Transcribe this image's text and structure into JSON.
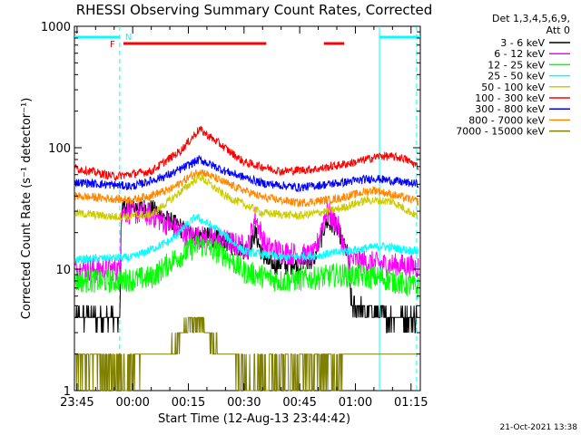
{
  "chart_data": {
    "type": "line",
    "title": "RHESSI Observing Summary Count Rates, Corrected",
    "xlabel": "Start Time (12-Aug-13 23:44:42)",
    "ylabel": "Corrected Count Rate (s⁻¹ detector⁻¹)",
    "yscale": "log",
    "ylim": [
      1,
      1000
    ],
    "xlim_minutes": [
      -0.7,
      92.5
    ],
    "x_tick_labels": [
      "23:45",
      "00:00",
      "00:15",
      "00:30",
      "00:45",
      "01:00",
      "01:15"
    ],
    "y_tick_labels": [
      "1",
      "10",
      "100",
      "1000"
    ],
    "legend_header": [
      "Det 1,3,4,5,6,9,",
      "Att 0"
    ],
    "legend_position": "right",
    "timestamp": "21-Oct-2021 13:38",
    "annotations": {
      "flags": [
        "F",
        "N"
      ],
      "night_intervals_min": [
        [
          -0.7,
          11.5
        ],
        [
          81.5,
          92.5
        ]
      ],
      "saa_dashed_min": [
        11.5,
        91.5
      ],
      "flare_bars_min": [
        [
          12.5,
          51
        ],
        [
          66.5,
          72
        ]
      ]
    },
    "series": [
      {
        "name": "3 - 6 keV",
        "color": "#000000",
        "points": [
          [
            -0.5,
            4
          ],
          [
            10,
            4
          ],
          [
            11.5,
            3.5
          ],
          [
            12,
            33
          ],
          [
            20,
            32
          ],
          [
            25,
            25
          ],
          [
            30,
            20
          ],
          [
            40,
            17
          ],
          [
            46,
            14
          ],
          [
            48,
            20
          ],
          [
            50,
            13
          ],
          [
            52,
            11
          ],
          [
            60,
            11
          ],
          [
            64,
            12
          ],
          [
            67,
            24
          ],
          [
            70,
            22
          ],
          [
            73,
            13
          ],
          [
            74,
            5
          ],
          [
            84,
            4
          ],
          [
            92,
            4
          ]
        ]
      },
      {
        "name": "6 - 12 keV",
        "color": "#ff00ff",
        "points": [
          [
            -0.5,
            10
          ],
          [
            11.5,
            10
          ],
          [
            12,
            30
          ],
          [
            20,
            28
          ],
          [
            25,
            23
          ],
          [
            30,
            19
          ],
          [
            40,
            17
          ],
          [
            46,
            15
          ],
          [
            48,
            27
          ],
          [
            51,
            15
          ],
          [
            60,
            13
          ],
          [
            64,
            13
          ],
          [
            67,
            30
          ],
          [
            70,
            24
          ],
          [
            73,
            12
          ],
          [
            82,
            11
          ],
          [
            92,
            10.5
          ]
        ]
      },
      {
        "name": "12 - 25 keV",
        "color": "#00ff00",
        "points": [
          [
            -0.5,
            8
          ],
          [
            10,
            8
          ],
          [
            20,
            8.5
          ],
          [
            26,
            12
          ],
          [
            33,
            16
          ],
          [
            40,
            13
          ],
          [
            45,
            9.5
          ],
          [
            55,
            8
          ],
          [
            65,
            8.5
          ],
          [
            70,
            9
          ],
          [
            82,
            8.5
          ],
          [
            92,
            7
          ]
        ]
      },
      {
        "name": "25 - 50 keV",
        "color": "#00ffff",
        "points": [
          [
            -0.5,
            12
          ],
          [
            15,
            12.5
          ],
          [
            25,
            17
          ],
          [
            32,
            27
          ],
          [
            38,
            21
          ],
          [
            45,
            14
          ],
          [
            55,
            12.5
          ],
          [
            65,
            13
          ],
          [
            72,
            14
          ],
          [
            82,
            15.5
          ],
          [
            92,
            14
          ]
        ]
      },
      {
        "name": "50 - 100 keV",
        "color": "#cccc00",
        "points": [
          [
            -0.5,
            29
          ],
          [
            10,
            27
          ],
          [
            20,
            28
          ],
          [
            26,
            39
          ],
          [
            33,
            58
          ],
          [
            40,
            40
          ],
          [
            50,
            29
          ],
          [
            60,
            27.5
          ],
          [
            70,
            31
          ],
          [
            78,
            37
          ],
          [
            85,
            36
          ],
          [
            92,
            27
          ]
        ]
      },
      {
        "name": "100 - 300 keV",
        "color": "#ff0000",
        "points": [
          [
            -0.5,
            68
          ],
          [
            10,
            58
          ],
          [
            20,
            64
          ],
          [
            28,
            95
          ],
          [
            33,
            142
          ],
          [
            38,
            110
          ],
          [
            45,
            76
          ],
          [
            55,
            64
          ],
          [
            65,
            67
          ],
          [
            75,
            76
          ],
          [
            82,
            86
          ],
          [
            88,
            82
          ],
          [
            92,
            70
          ]
        ]
      },
      {
        "name": "300 - 800 keV",
        "color": "#0000ff",
        "points": [
          [
            -0.5,
            52
          ],
          [
            15,
            48
          ],
          [
            25,
            60
          ],
          [
            33,
            80
          ],
          [
            40,
            64
          ],
          [
            50,
            51
          ],
          [
            60,
            47
          ],
          [
            70,
            51
          ],
          [
            80,
            56
          ],
          [
            92,
            50
          ]
        ]
      },
      {
        "name": "800 - 7000 keV",
        "color": "#ff8800",
        "points": [
          [
            -0.5,
            40
          ],
          [
            15,
            37
          ],
          [
            25,
            45
          ],
          [
            33,
            65
          ],
          [
            40,
            51
          ],
          [
            50,
            39
          ],
          [
            60,
            35
          ],
          [
            70,
            38
          ],
          [
            80,
            45
          ],
          [
            92,
            36
          ]
        ]
      },
      {
        "name": "7000 - 15000 keV",
        "color": "#808000",
        "points": [
          [
            -0.5,
            1.7
          ],
          [
            11.5,
            1.5
          ],
          [
            25,
            2
          ],
          [
            30,
            3.5
          ],
          [
            34,
            3.5
          ],
          [
            38,
            2
          ],
          [
            45,
            1.5
          ],
          [
            70,
            1.6
          ],
          [
            75,
            2
          ],
          [
            92,
            1.8
          ]
        ]
      }
    ]
  }
}
